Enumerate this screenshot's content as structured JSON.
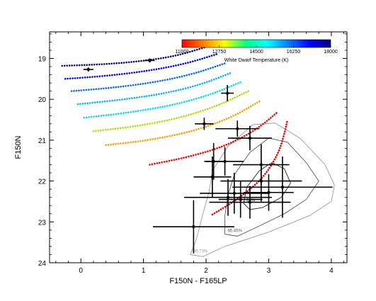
{
  "chart_data": {
    "type": "scatter",
    "title": "",
    "xlabel": "F150N - F165LP",
    "ylabel": "F150N",
    "xlim": [
      -0.5,
      4.25
    ],
    "ylim": [
      24.0,
      18.35
    ],
    "y_inverted": true,
    "x_ticks": [
      0,
      1,
      2,
      3,
      4
    ],
    "y_ticks": [
      19,
      20,
      21,
      22,
      23,
      24
    ],
    "grid": false,
    "colorbar": {
      "label": "White Dwarf Temperature (K)",
      "ticks": [
        11000,
        12750,
        14500,
        16250,
        18000
      ],
      "range": [
        11000,
        18000
      ],
      "colors": [
        "#ff0000",
        "#ff8000",
        "#ffff00",
        "#00ff80",
        "#00ffff",
        "#0080ff",
        "#0000ff",
        "#000080"
      ]
    },
    "cooling_tracks": [
      {
        "color": "#000080",
        "points": [
          [
            -0.3,
            19.18
          ],
          [
            0.3,
            19.15
          ],
          [
            0.9,
            19.08
          ],
          [
            1.5,
            18.95
          ],
          [
            2.0,
            18.72
          ]
        ]
      },
      {
        "color": "#0000ff",
        "points": [
          [
            -0.25,
            19.5
          ],
          [
            0.4,
            19.43
          ],
          [
            1.1,
            19.3
          ],
          [
            1.7,
            19.12
          ],
          [
            2.2,
            18.88
          ]
        ]
      },
      {
        "color": "#0066ff",
        "points": [
          [
            -0.15,
            19.8
          ],
          [
            0.5,
            19.72
          ],
          [
            1.2,
            19.58
          ],
          [
            1.8,
            19.38
          ],
          [
            2.3,
            19.12
          ]
        ]
      },
      {
        "color": "#00b4ff",
        "points": [
          [
            -0.05,
            20.12
          ],
          [
            0.6,
            20.02
          ],
          [
            1.3,
            19.87
          ],
          [
            1.9,
            19.65
          ],
          [
            2.4,
            19.35
          ]
        ]
      },
      {
        "color": "#00e0e0",
        "points": [
          [
            0.05,
            20.45
          ],
          [
            0.75,
            20.33
          ],
          [
            1.45,
            20.15
          ],
          [
            2.05,
            19.9
          ],
          [
            2.55,
            19.58
          ]
        ]
      },
      {
        "color": "#b4dc00",
        "points": [
          [
            0.2,
            20.78
          ],
          [
            0.9,
            20.66
          ],
          [
            1.6,
            20.45
          ],
          [
            2.2,
            20.15
          ],
          [
            2.7,
            19.78
          ]
        ]
      },
      {
        "color": "#ffa000",
        "points": [
          [
            0.4,
            21.12
          ],
          [
            1.1,
            21.0
          ],
          [
            1.8,
            20.78
          ],
          [
            2.4,
            20.45
          ],
          [
            2.85,
            20.05
          ]
        ]
      },
      {
        "color": "#ff0000",
        "points": [
          [
            1.1,
            21.6
          ],
          [
            1.7,
            21.42
          ],
          [
            2.3,
            21.15
          ],
          [
            2.8,
            20.75
          ],
          [
            3.15,
            20.3
          ]
        ]
      },
      {
        "color": "#e00000",
        "points": [
          [
            2.1,
            22.82
          ],
          [
            2.5,
            22.45
          ],
          [
            2.9,
            21.95
          ],
          [
            3.15,
            21.35
          ],
          [
            3.25,
            20.85
          ],
          [
            3.3,
            20.5
          ]
        ]
      }
    ],
    "points": [
      {
        "x": 0.12,
        "y": 19.27,
        "xerr": 0.08,
        "yerr": 0.05
      },
      {
        "x": 1.1,
        "y": 19.05,
        "xerr": 0.08,
        "yerr": 0.05
      },
      {
        "x": 2.34,
        "y": 19.85,
        "xerr": 0.1,
        "yerr": 0.2
      },
      {
        "x": 1.97,
        "y": 20.6,
        "xerr": 0.15,
        "yerr": 0.15
      },
      {
        "x": 2.5,
        "y": 20.72,
        "xerr": 0.35,
        "yerr": 0.2
      },
      {
        "x": 2.7,
        "y": 20.95,
        "xerr": 0.35,
        "yerr": 0.3
      },
      {
        "x": 2.12,
        "y": 21.52,
        "xerr": 0.15,
        "yerr": 0.45
      },
      {
        "x": 2.3,
        "y": 21.52,
        "xerr": 0.3,
        "yerr": 0.35
      },
      {
        "x": 2.1,
        "y": 21.9,
        "xerr": 0.3,
        "yerr": 0.5
      },
      {
        "x": 2.88,
        "y": 21.6,
        "xerr": 0.45,
        "yerr": 0.5
      },
      {
        "x": 2.88,
        "y": 22.0,
        "xerr": 0.65,
        "yerr": 0.5
      },
      {
        "x": 2.45,
        "y": 22.3,
        "xerr": 0.55,
        "yerr": 0.5
      },
      {
        "x": 2.55,
        "y": 22.45,
        "xerr": 0.35,
        "yerr": 0.45
      },
      {
        "x": 3.22,
        "y": 22.15,
        "xerr": 0.8,
        "yerr": 0.75
      },
      {
        "x": 3.0,
        "y": 22.28,
        "xerr": 0.4,
        "yerr": 0.45
      },
      {
        "x": 2.7,
        "y": 22.52,
        "xerr": 0.65,
        "yerr": 0.4
      },
      {
        "x": 2.35,
        "y": 22.4,
        "xerr": 0.7,
        "yerr": 0.45
      },
      {
        "x": 1.8,
        "y": 23.12,
        "xerr": 0.65,
        "yerr": 0.65
      }
    ],
    "contours": [
      {
        "label": "99.73%",
        "color": "#999999",
        "points": [
          [
            1.75,
            23.8
          ],
          [
            1.85,
            23.4
          ],
          [
            1.95,
            22.8
          ],
          [
            2.05,
            22.25
          ],
          [
            2.1,
            21.75
          ],
          [
            2.35,
            21.15
          ],
          [
            2.75,
            20.62
          ],
          [
            3.1,
            20.58
          ],
          [
            3.5,
            20.95
          ],
          [
            3.9,
            21.6
          ],
          [
            4.05,
            22.1
          ],
          [
            4.0,
            22.5
          ],
          [
            3.65,
            22.85
          ],
          [
            3.0,
            23.25
          ],
          [
            2.3,
            23.6
          ],
          [
            1.95,
            23.85
          ]
        ]
      },
      {
        "label": "95.45%",
        "color": "#555555",
        "points": [
          [
            2.3,
            23.3
          ],
          [
            2.3,
            22.85
          ],
          [
            2.35,
            22.35
          ],
          [
            2.45,
            21.85
          ],
          [
            2.7,
            21.3
          ],
          [
            3.0,
            20.95
          ],
          [
            3.3,
            21.05
          ],
          [
            3.6,
            21.55
          ],
          [
            3.8,
            22.0
          ],
          [
            3.6,
            22.45
          ],
          [
            3.25,
            22.8
          ],
          [
            2.85,
            23.1
          ],
          [
            2.5,
            23.35
          ]
        ]
      },
      {
        "label": "68%",
        "color": "#222222",
        "points": [
          [
            2.6,
            22.55
          ],
          [
            2.65,
            22.15
          ],
          [
            2.85,
            21.75
          ],
          [
            3.05,
            21.55
          ],
          [
            3.25,
            21.7
          ],
          [
            3.35,
            22.05
          ],
          [
            3.2,
            22.4
          ],
          [
            2.9,
            22.65
          ],
          [
            2.7,
            22.7
          ]
        ]
      }
    ]
  }
}
